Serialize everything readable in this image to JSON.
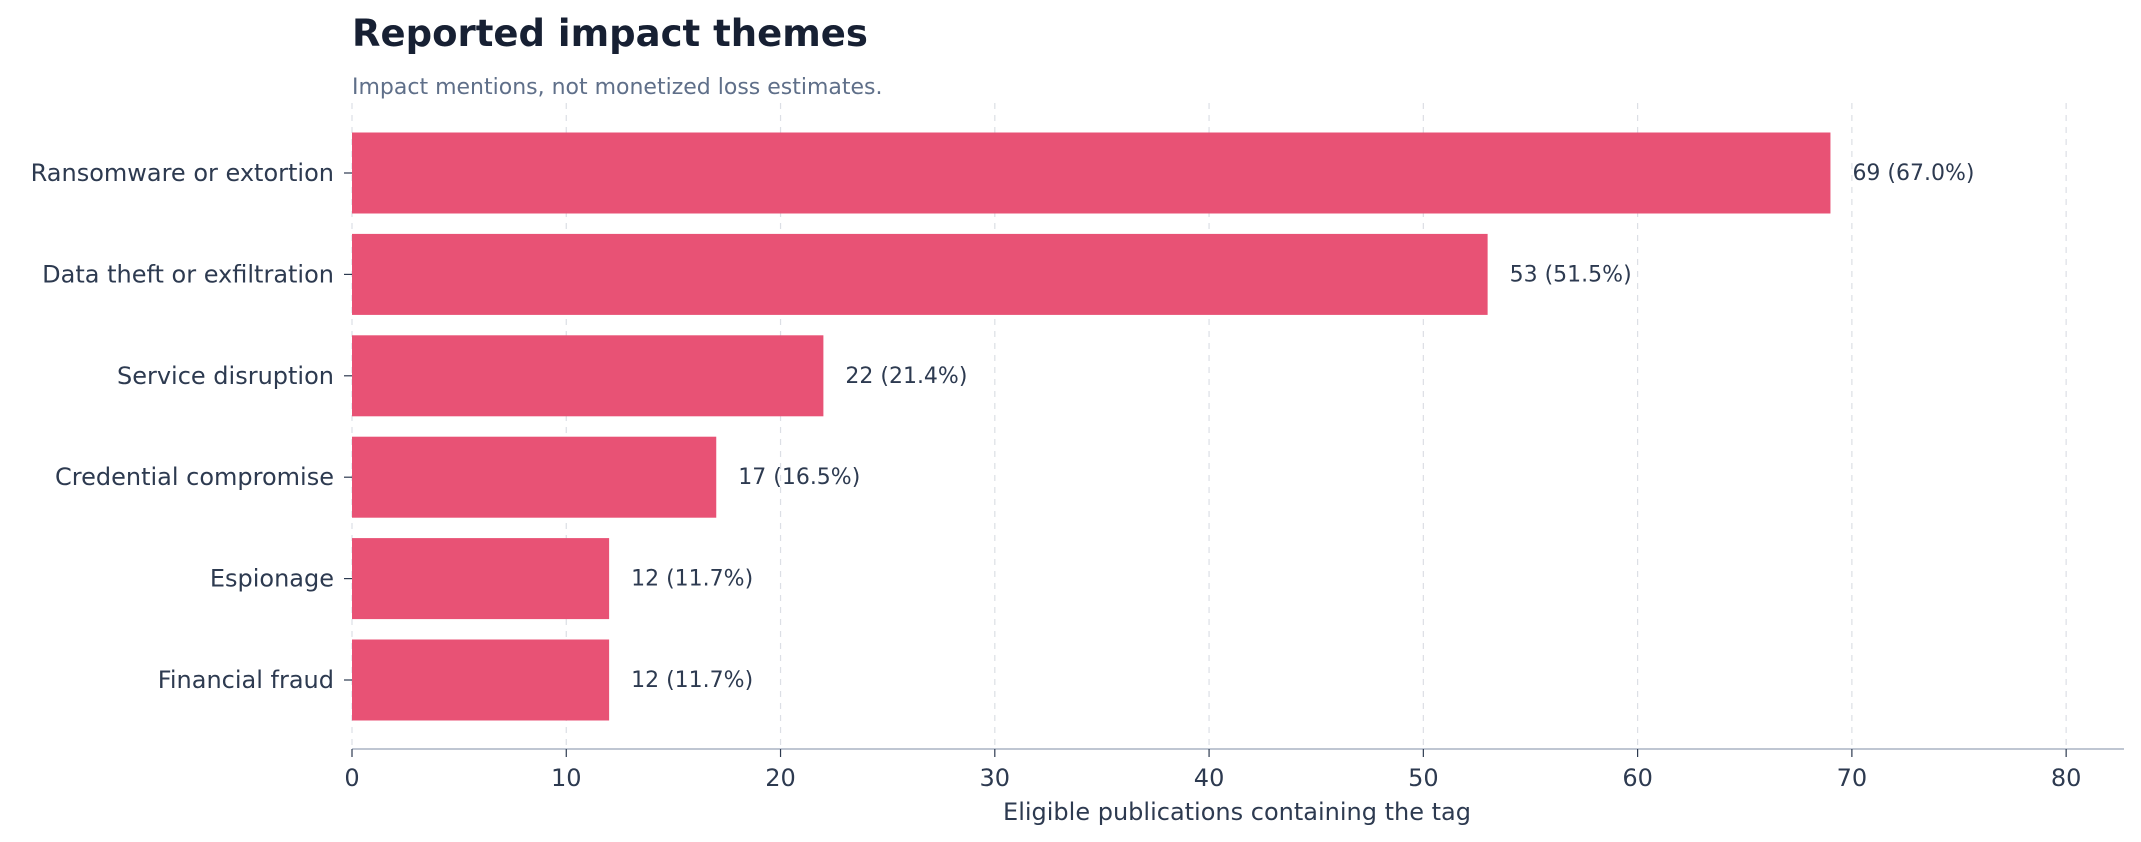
{
  "colors": {
    "bar": "#e85275",
    "title": "#172033",
    "subtitle": "#5f6f89",
    "text": "#2d3a50",
    "grid": "#dcdfe5",
    "axis": "#aab4c4"
  },
  "chart_data": {
    "type": "bar",
    "orientation": "horizontal",
    "title": "Reported impact themes",
    "subtitle": "Impact mentions, not monetized loss estimates.",
    "xlabel": "Eligible publications containing the tag",
    "ylabel": "",
    "categories": [
      "Ransomware or extortion",
      "Data theft or exfiltration",
      "Service disruption",
      "Credential compromise",
      "Espionage",
      "Financial fraud"
    ],
    "values": [
      69,
      53,
      22,
      17,
      12,
      12
    ],
    "data_labels": [
      "69  (67.0%)",
      "53  (51.5%)",
      "22  (21.4%)",
      "17  (16.5%)",
      "12  (11.7%)",
      "12  (11.7%)"
    ],
    "xlim": [
      0,
      82.7
    ],
    "xticks": [
      0,
      10,
      20,
      30,
      40,
      50,
      60,
      70,
      80
    ],
    "xtick_labels": [
      "0",
      "10",
      "20",
      "30",
      "40",
      "50",
      "60",
      "70",
      "80"
    ],
    "grid": "vertical dashed",
    "legend": "none"
  }
}
